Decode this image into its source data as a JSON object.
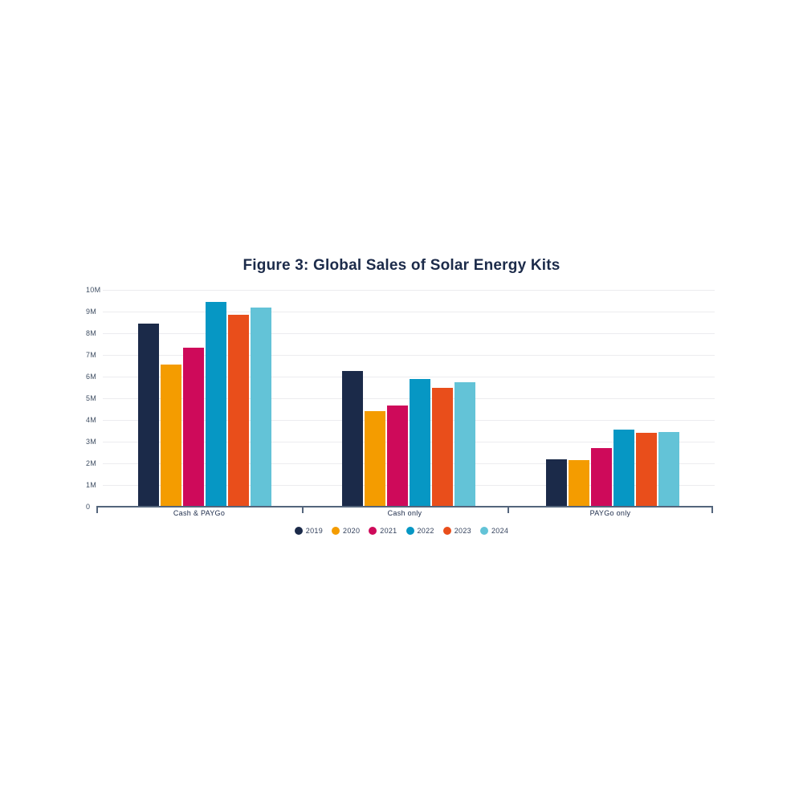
{
  "title": "Figure 3: Global Sales of Solar Energy Kits",
  "chart_data": {
    "type": "bar",
    "title": "Figure 3: Global Sales of Solar Energy Kits",
    "categories": [
      "Cash & PAYGo",
      "Cash only",
      "PAYGo only"
    ],
    "series": [
      {
        "name": "2019",
        "color": "#1B2A49",
        "values": [
          8.45,
          6.25,
          2.2
        ]
      },
      {
        "name": "2020",
        "color": "#F49C00",
        "values": [
          6.55,
          4.4,
          2.15
        ]
      },
      {
        "name": "2021",
        "color": "#CE0A5A",
        "values": [
          7.35,
          4.65,
          2.7
        ]
      },
      {
        "name": "2022",
        "color": "#0697C4",
        "values": [
          9.45,
          5.9,
          3.55
        ]
      },
      {
        "name": "2023",
        "color": "#E94E1B",
        "values": [
          8.85,
          5.5,
          3.4
        ]
      },
      {
        "name": "2024",
        "color": "#63C3D7",
        "values": [
          9.2,
          5.75,
          3.45
        ]
      }
    ],
    "unit": "M",
    "ylim": [
      0,
      10
    ],
    "ytick_step": 1,
    "ytick_labels": [
      "10M",
      "9M",
      "8M",
      "7M",
      "6M",
      "5M",
      "4M",
      "3M",
      "2M",
      "1M",
      "0"
    ],
    "grid": true,
    "legend_position": "bottom",
    "legend_entries": [
      "2019",
      "2020",
      "2021",
      "2022",
      "2023",
      "2024"
    ]
  },
  "colors": {
    "title_text": "#1C2B4A",
    "axis_text": "#3F4E63",
    "category_text": "#1C2B4A",
    "gridline": "#ECECEF",
    "axis_line": "#54657C",
    "background": "#FFFFFF"
  }
}
